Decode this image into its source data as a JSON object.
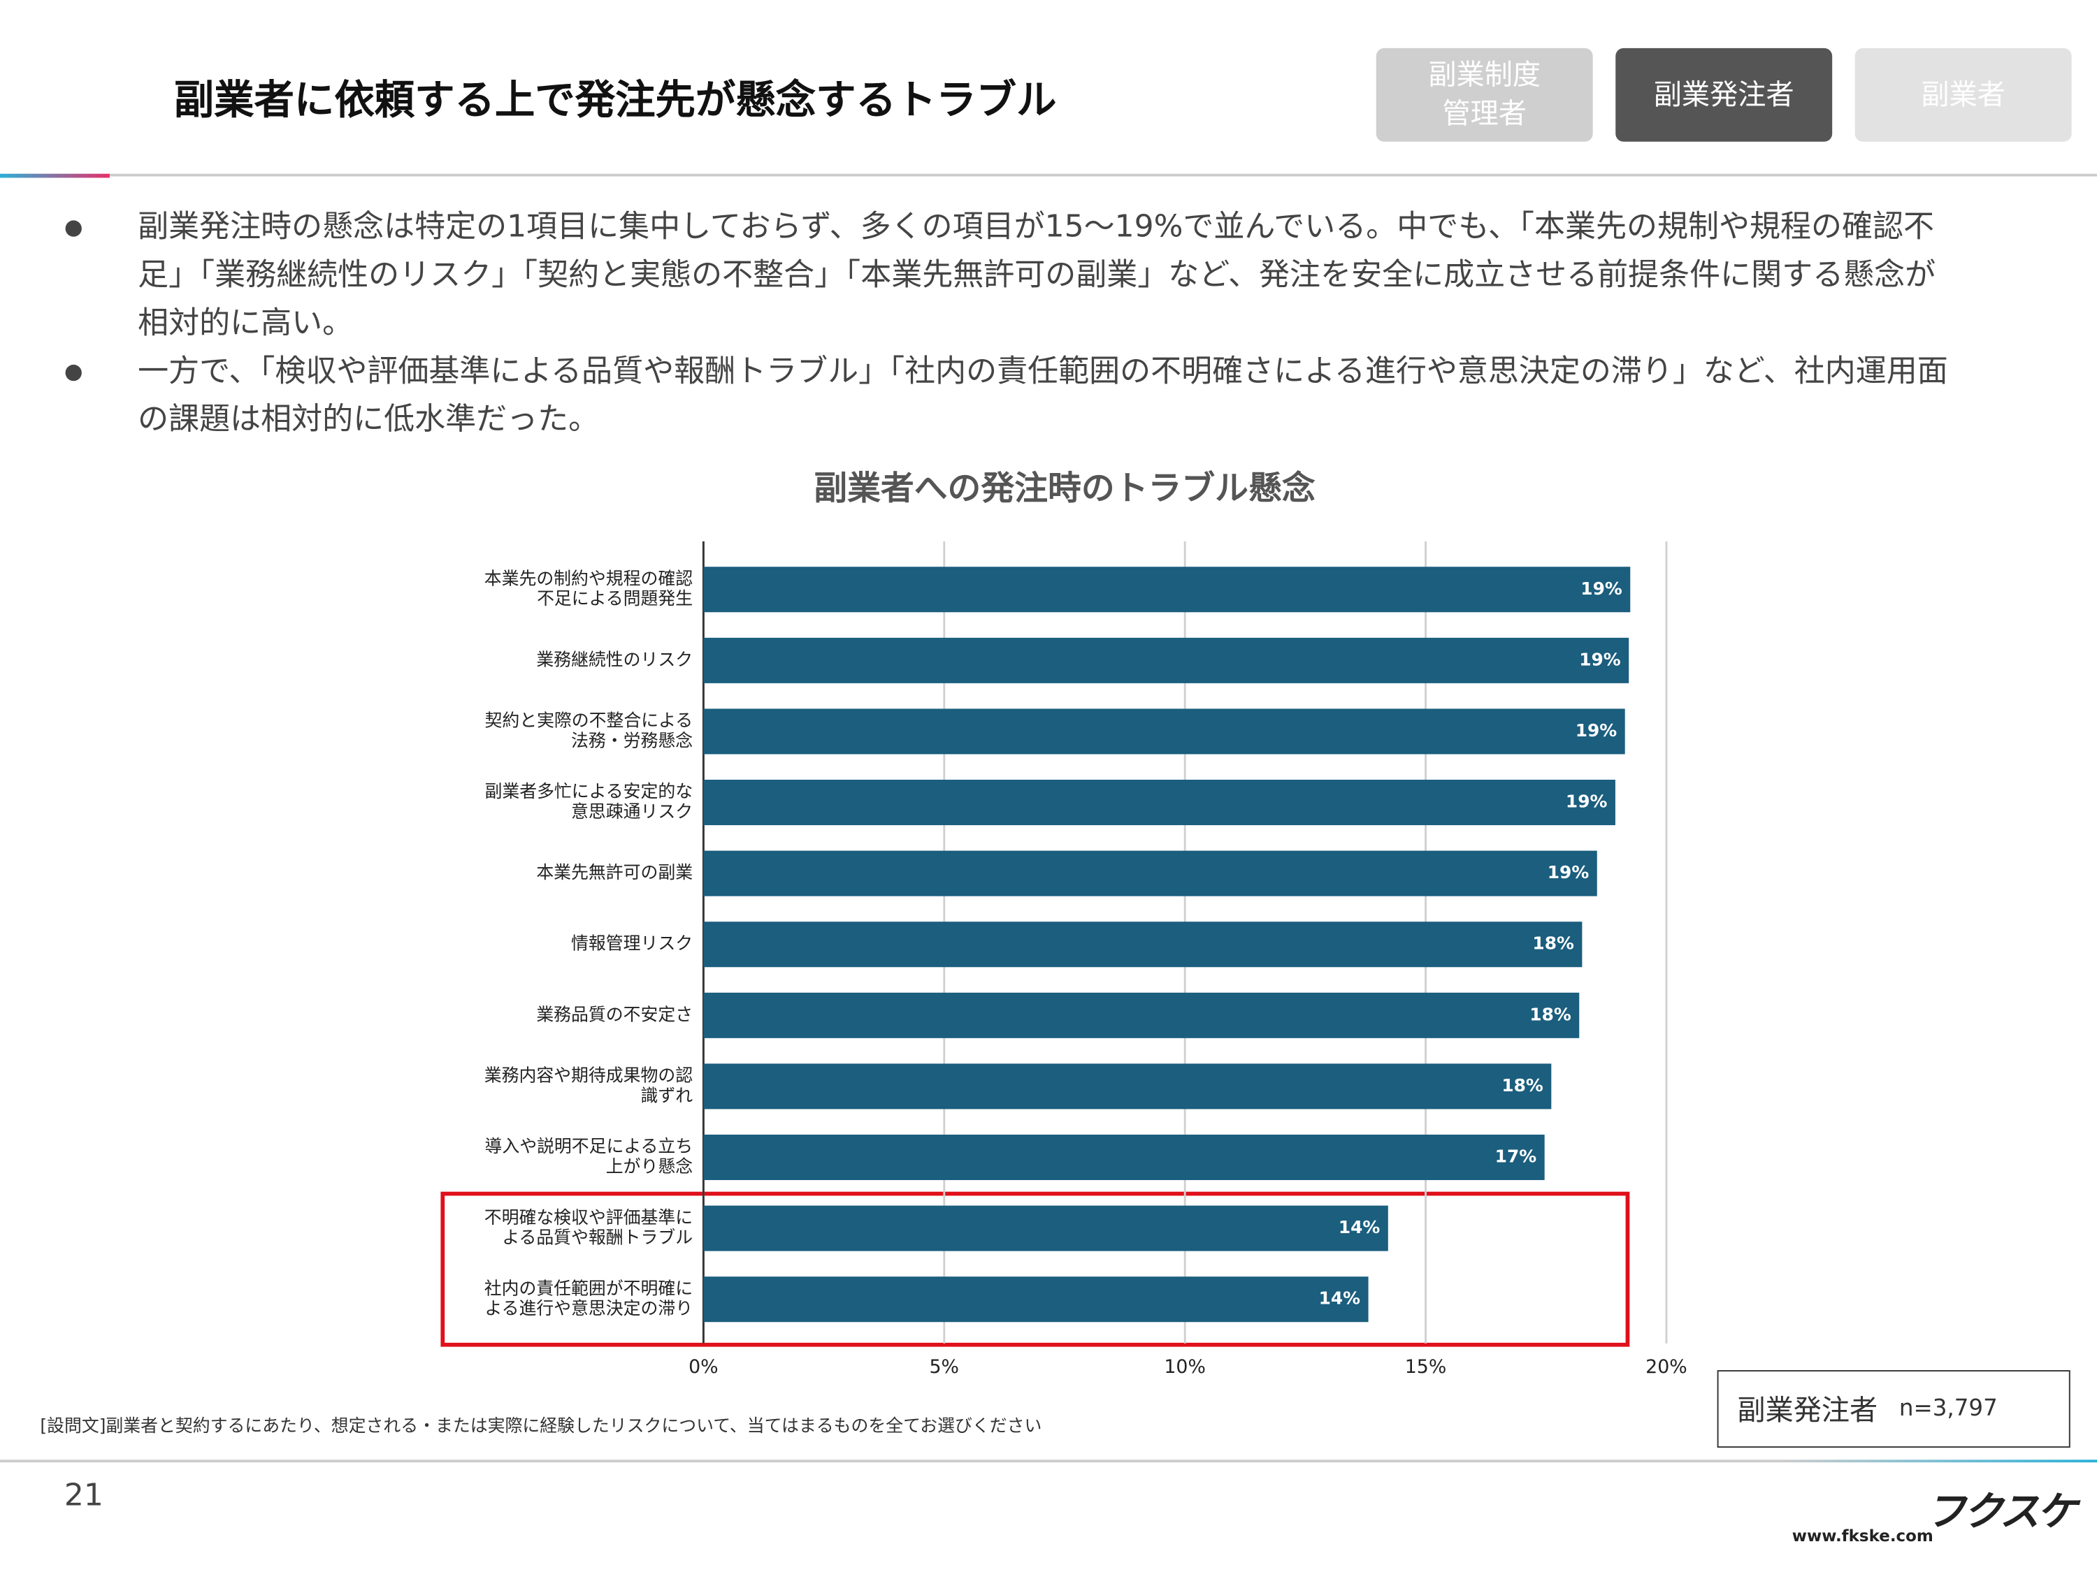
{
  "header": {
    "title": "副業者に依頼する上で発注先が懸念するトラブル",
    "tabs": [
      [
        "副業制度",
        "管理者"
      ],
      [
        "副業発注者"
      ],
      [
        "副業者"
      ]
    ]
  },
  "bullets": [
    "副業発注時の懸念は特定の1項目に集中しておらず、多くの項目が15〜19%で並んでいる。中でも、「本業先の規制や規程の確認不足」「業務継続性のリスク」「契約と実態の不整合」「本業先無許可の副業」など、発注を安全に成立させる前提条件に関する懸念が相対的に高い。",
    "一方で、「検収や評価基準による品質や報酬トラブル」「社内の責任範囲の不明確さによる進行や意思決定の滞り」など、社内運用面の課題は相対的に低水準だった。"
  ],
  "chart_data": {
    "type": "bar",
    "orientation": "horizontal",
    "title": "副業者への発注時のトラブル懸念",
    "categories": [
      [
        "本業先の制約や規程の確認",
        "不足による問題発生"
      ],
      [
        "業務継続性のリスク"
      ],
      [
        "契約と実際の不整合による",
        "法務・労務懸念"
      ],
      [
        "副業者多忙による安定的な",
        "意思疎通リスク"
      ],
      [
        "本業先無許可の副業"
      ],
      [
        "情報管理リスク"
      ],
      [
        "業務品質の不安定さ"
      ],
      [
        "業務内容や期待成果物の認",
        "識ずれ"
      ],
      [
        "導入や説明不足による立ち",
        "上がり懸念"
      ],
      [
        "不明確な検収や評価基準に",
        "よる品質や報酬トラブル"
      ],
      [
        "社内の責任範囲が不明確に",
        "よる進行や意思決定の滞り"
      ]
    ],
    "values": [
      19.25,
      19.22,
      19.14,
      18.94,
      18.56,
      18.25,
      18.19,
      17.61,
      17.47,
      14.22,
      13.81
    ],
    "value_labels": [
      "19%",
      "19%",
      "19%",
      "19%",
      "19%",
      "18%",
      "18%",
      "18%",
      "17%",
      "14%",
      "14%"
    ],
    "color": "#1b5e7e",
    "xlim": [
      0,
      20
    ],
    "xticks": [
      {
        "value": 0,
        "label": "0%"
      },
      {
        "value": 5,
        "label": "5%"
      },
      {
        "value": 10,
        "label": "10%"
      },
      {
        "value": 15,
        "label": "15%"
      },
      {
        "value": 20,
        "label": "20%"
      }
    ],
    "grid": true
  },
  "question": "[設問文]副業者と契約するにあたり、想定される・または実際に経験したリスクについて、当てはまるものを全てお選びください",
  "legend": {
    "group": "副業発注者",
    "n": "n=3,797"
  },
  "footer": {
    "page": "21",
    "logo": "フクスケ",
    "url": "www.fkske.com"
  }
}
